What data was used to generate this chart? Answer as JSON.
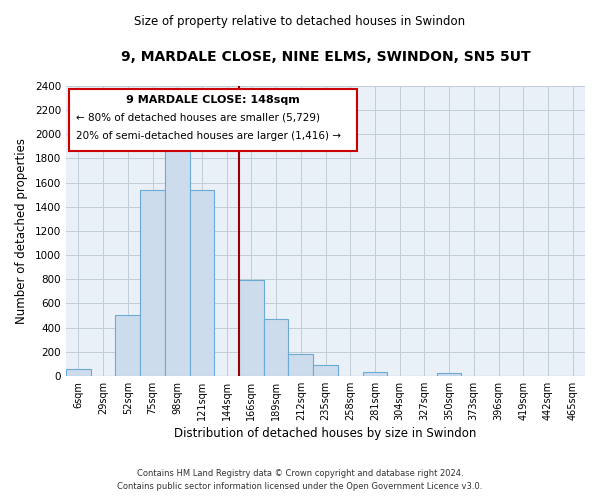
{
  "title": "9, MARDALE CLOSE, NINE ELMS, SWINDON, SN5 5UT",
  "subtitle": "Size of property relative to detached houses in Swindon",
  "xlabel": "Distribution of detached houses by size in Swindon",
  "ylabel": "Number of detached properties",
  "bar_color": "#cddcec",
  "bar_edge_color": "#6aaad4",
  "bg_color": "#eaf0f7",
  "grid_color": "#c0cdd8",
  "vline_color": "#990000",
  "bin_labels": [
    "6sqm",
    "29sqm",
    "52sqm",
    "75sqm",
    "98sqm",
    "121sqm",
    "144sqm",
    "166sqm",
    "189sqm",
    "212sqm",
    "235sqm",
    "258sqm",
    "281sqm",
    "304sqm",
    "327sqm",
    "350sqm",
    "373sqm",
    "396sqm",
    "419sqm",
    "442sqm",
    "465sqm"
  ],
  "bar_heights": [
    55,
    0,
    500,
    1540,
    1940,
    1540,
    0,
    790,
    470,
    180,
    90,
    0,
    30,
    0,
    0,
    25,
    0,
    0,
    0,
    0,
    0
  ],
  "ylim": [
    0,
    2400
  ],
  "yticks": [
    0,
    200,
    400,
    600,
    800,
    1000,
    1200,
    1400,
    1600,
    1800,
    2000,
    2200,
    2400
  ],
  "vline_bar_index": 6,
  "annotation_title": "9 MARDALE CLOSE: 148sqm",
  "annotation_line1": "← 80% of detached houses are smaller (5,729)",
  "annotation_line2": "20% of semi-detached houses are larger (1,416) →",
  "annotation_box_color": "#ffffff",
  "annotation_box_edge": "#cc0000",
  "footer1": "Contains HM Land Registry data © Crown copyright and database right 2024.",
  "footer2": "Contains public sector information licensed under the Open Government Licence v3.0."
}
